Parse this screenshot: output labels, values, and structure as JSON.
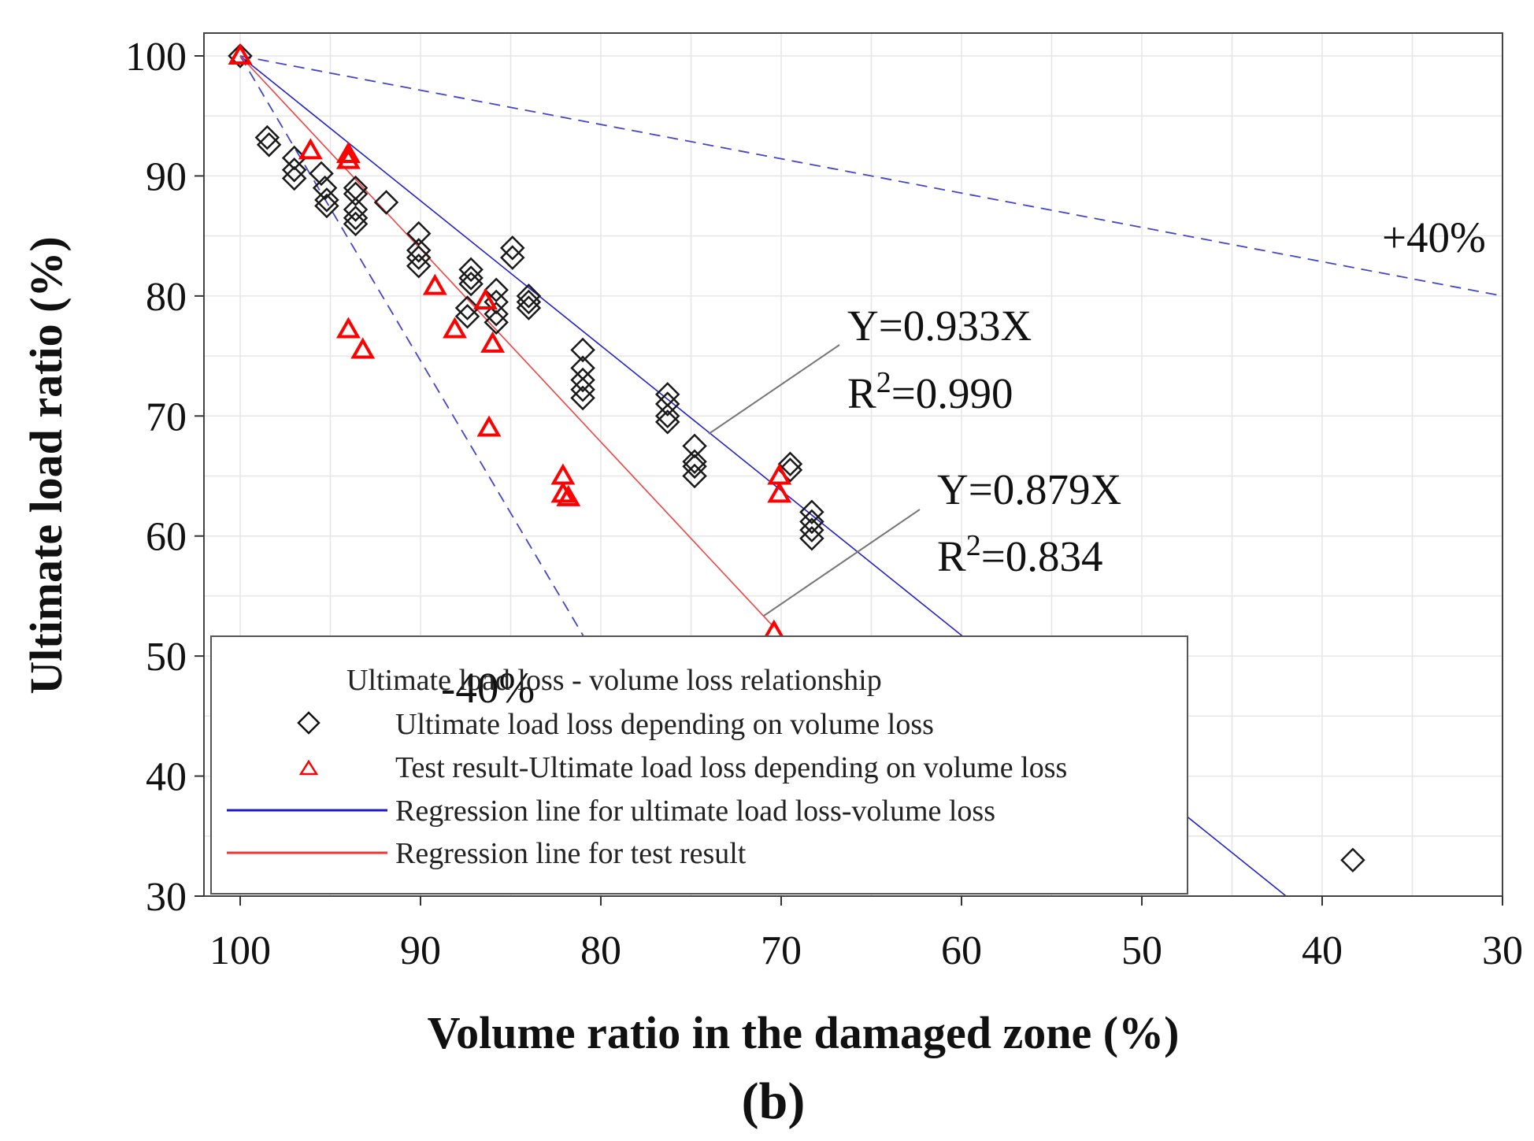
{
  "chart_data": {
    "type": "scatter",
    "panel_label": "(b)",
    "xlabel": "Volume ratio in the damaged zone (%)",
    "ylabel": "Ultimate load ratio (%)",
    "xlim": [
      100,
      30
    ],
    "ylim": [
      30,
      100
    ],
    "x_reversed": true,
    "xticks": [
      100,
      90,
      80,
      70,
      60,
      50,
      40,
      30
    ],
    "yticks": [
      100,
      90,
      80,
      70,
      60,
      50,
      40,
      30
    ],
    "grid": true,
    "legend": {
      "title": "Ultimate load loss - volume loss relationship",
      "placement": "bottom-left",
      "entries": [
        {
          "label": "Ultimate load loss depending on volume loss",
          "marker": "diamond",
          "color": "#000000"
        },
        {
          "label": "Test result-Ultimate load loss depending on volume loss",
          "marker": "triangle",
          "color": "#ff0000"
        },
        {
          "label": "Regression line for ultimate load loss-volume loss",
          "marker": "line",
          "color": "#1a1acc"
        },
        {
          "label": "Regression line for test result",
          "marker": "line",
          "color": "#ee3333"
        }
      ]
    },
    "series": [
      {
        "name": "Ultimate load loss depending on volume loss",
        "marker": "diamond",
        "color": "#000000",
        "points": [
          [
            100,
            100
          ],
          [
            98.5,
            93.2
          ],
          [
            98.4,
            92.6
          ],
          [
            97,
            91.5
          ],
          [
            97,
            90.5
          ],
          [
            97,
            89.8
          ],
          [
            95.5,
            90.2
          ],
          [
            95.3,
            89
          ],
          [
            95.2,
            88
          ],
          [
            95.2,
            87.5
          ],
          [
            93.6,
            89
          ],
          [
            93.6,
            88.5
          ],
          [
            93.6,
            87.2
          ],
          [
            93.6,
            86.5
          ],
          [
            93.6,
            86
          ],
          [
            91.9,
            87.8
          ],
          [
            90.1,
            85.2
          ],
          [
            90.1,
            83.8
          ],
          [
            90.1,
            83.2
          ],
          [
            90.1,
            82.5
          ],
          [
            87.2,
            82.2
          ],
          [
            87.2,
            81.5
          ],
          [
            87.2,
            81
          ],
          [
            87.4,
            79
          ],
          [
            87.4,
            78.3
          ],
          [
            85.8,
            80.5
          ],
          [
            85.8,
            79.5
          ],
          [
            85.8,
            78.5
          ],
          [
            85.8,
            77.8
          ],
          [
            84.9,
            84
          ],
          [
            84.9,
            83.2
          ],
          [
            84,
            80
          ],
          [
            84,
            79.5
          ],
          [
            84,
            79
          ],
          [
            81,
            75.5
          ],
          [
            81,
            74
          ],
          [
            81,
            73
          ],
          [
            81,
            72.2
          ],
          [
            81,
            71.5
          ],
          [
            76.3,
            71.8
          ],
          [
            76.3,
            71
          ],
          [
            76.3,
            70
          ],
          [
            76.3,
            69.5
          ],
          [
            74.8,
            67.5
          ],
          [
            74.8,
            66.2
          ],
          [
            74.8,
            65.8
          ],
          [
            74.8,
            65
          ],
          [
            69.5,
            66
          ],
          [
            69.5,
            65.5
          ],
          [
            68.3,
            62
          ],
          [
            68.3,
            61.2
          ],
          [
            68.3,
            60.5
          ],
          [
            68.3,
            59.8
          ],
          [
            38.3,
            33
          ]
        ]
      },
      {
        "name": "Test result-Ultimate load loss depending on volume loss",
        "marker": "triangle",
        "color": "#ff0000",
        "points": [
          [
            100,
            100
          ],
          [
            96.1,
            92.1
          ],
          [
            94,
            91.8
          ],
          [
            94,
            91.3
          ],
          [
            94,
            77.2
          ],
          [
            93.2,
            75.5
          ],
          [
            89.2,
            80.8
          ],
          [
            88.1,
            77.2
          ],
          [
            86.4,
            79.6
          ],
          [
            86,
            76
          ],
          [
            86.2,
            69
          ],
          [
            82.1,
            65
          ],
          [
            82.1,
            63.5
          ],
          [
            81.8,
            63.2
          ],
          [
            70.1,
            65
          ],
          [
            70.1,
            63.5
          ],
          [
            70.4,
            52
          ]
        ]
      }
    ],
    "lines": [
      {
        "name": "Regression line for ultimate load loss-volume loss",
        "equation": "Y=0.933X",
        "slope": 0.933,
        "r2": "0.990",
        "style": "solid",
        "color": "#2222cc",
        "from": [
          100,
          100
        ],
        "to": [
          42,
          30
        ]
      },
      {
        "name": "Regression line for test result",
        "equation": "Y=0.879X",
        "slope": 0.879,
        "r2": "0.834",
        "style": "solid",
        "color": "#ee4444",
        "from": [
          100,
          100
        ],
        "to": [
          70.4,
          52.4
        ]
      },
      {
        "name": "+40% bound",
        "label": "+40%",
        "style": "dashed",
        "color": "#4444cc",
        "from": [
          100,
          100
        ],
        "to": [
          30,
          80
        ]
      },
      {
        "name": "-40% bound",
        "label": "-40%",
        "style": "dashed",
        "color": "#4444cc",
        "from": [
          100,
          100
        ],
        "to": [
          80.9,
          51.5
        ]
      }
    ],
    "annotations": {
      "blue_fit": {
        "equation": "Y=0.933X",
        "r_prefix": "R",
        "r_sup": "2",
        "r_value": "=0.990"
      },
      "red_fit": {
        "equation": "Y=0.879X",
        "r_prefix": "R",
        "r_sup": "2",
        "r_value": "=0.834"
      },
      "plus40": "+40%",
      "minus40": "-40%"
    }
  }
}
